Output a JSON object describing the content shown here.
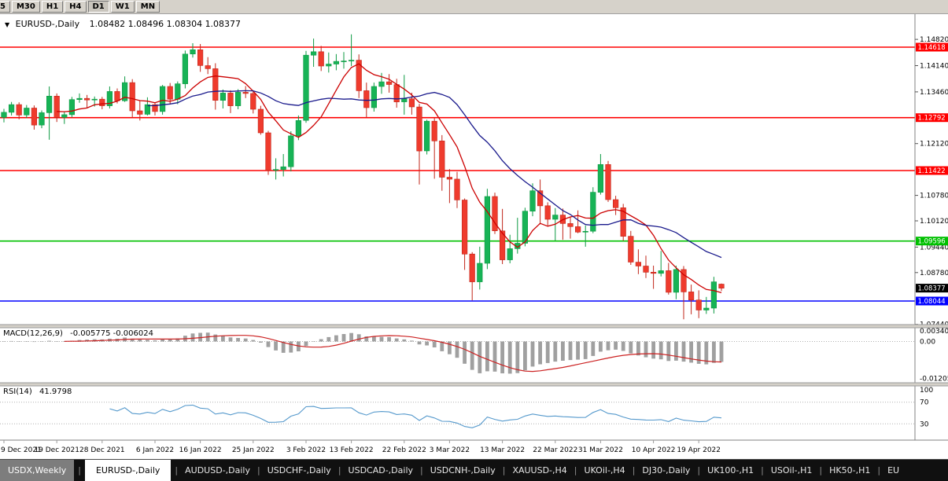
{
  "toolbar": {
    "buttons": [
      {
        "label": "5",
        "active": false,
        "partial": true
      },
      {
        "label": "M30",
        "active": false
      },
      {
        "label": "H1",
        "active": false
      },
      {
        "label": "H4",
        "active": false
      },
      {
        "label": "D1",
        "active": true
      },
      {
        "label": "W1",
        "active": false
      },
      {
        "label": "MN",
        "active": false
      }
    ]
  },
  "chart_data": {
    "type": "candlestick",
    "symbol_period": "EURUSD-,Daily",
    "ohlc_text": "1.08482 1.08496 1.08304 1.08377",
    "collapse_icon": "▼",
    "axis": {
      "price_top": 1.15473,
      "price_bottom": 1.07433,
      "ticks": [
        {
          "label": "1.14820",
          "p": 1.1482
        },
        {
          "label": "1.14140",
          "p": 1.1414
        },
        {
          "label": "1.13460",
          "p": 1.1346
        },
        {
          "label": "1.12120",
          "p": 1.1212
        },
        {
          "label": "1.10780",
          "p": 1.1078
        },
        {
          "label": "1.10120",
          "p": 1.1012
        },
        {
          "label": "1.09440",
          "p": 1.0944
        },
        {
          "label": "1.08780",
          "p": 1.0878
        },
        {
          "label": "1.07440",
          "p": 1.0744
        }
      ]
    },
    "hlines": [
      {
        "price": 1.14618,
        "label": "1.14618",
        "color": "#ff0000"
      },
      {
        "price": 1.12792,
        "label": "1.12792",
        "color": "#ff0000"
      },
      {
        "price": 1.11422,
        "label": "1.11422",
        "color": "#ff0000"
      },
      {
        "price": 1.09596,
        "label": "1.09596",
        "color": "#00c000"
      },
      {
        "price": 1.08044,
        "label": "1.08044",
        "color": "#0000ff"
      }
    ],
    "current_price": {
      "label": "1.08377",
      "price": 1.08377,
      "bg": "#000000"
    },
    "colors": {
      "up": "#0d9a43",
      "up_fill": "#17b356",
      "down": "#c1271b",
      "down_fill": "#ef3b2d"
    },
    "ma": [
      {
        "period": 8,
        "color": "#cc0000"
      },
      {
        "period": 20,
        "color": "#1a1a8c"
      }
    ],
    "candles": [
      [
        1.128,
        1.1302,
        1.1267,
        1.1293
      ],
      [
        1.1293,
        1.132,
        1.1285,
        1.1313
      ],
      [
        1.1313,
        1.1319,
        1.1275,
        1.1286
      ],
      [
        1.1286,
        1.1312,
        1.1278,
        1.1304
      ],
      [
        1.1304,
        1.1311,
        1.1248,
        1.126
      ],
      [
        1.126,
        1.1298,
        1.1252,
        1.1292
      ],
      [
        1.1292,
        1.136,
        1.1222,
        1.1335
      ],
      [
        1.1335,
        1.1342,
        1.1268,
        1.128
      ],
      [
        1.128,
        1.1295,
        1.1263,
        1.1287
      ],
      [
        1.1287,
        1.1333,
        1.128,
        1.1326
      ],
      [
        1.1326,
        1.1342,
        1.1318,
        1.1329
      ],
      [
        1.1329,
        1.1338,
        1.1304,
        1.1325
      ],
      [
        1.1325,
        1.1334,
        1.1308,
        1.1327
      ],
      [
        1.1327,
        1.1333,
        1.1301,
        1.131
      ],
      [
        1.131,
        1.136,
        1.1303,
        1.1347
      ],
      [
        1.1347,
        1.1355,
        1.1316,
        1.1323
      ],
      [
        1.1323,
        1.1386,
        1.132,
        1.137
      ],
      [
        1.137,
        1.1379,
        1.1279,
        1.1297
      ],
      [
        1.1297,
        1.1323,
        1.1272,
        1.1288
      ],
      [
        1.1288,
        1.1332,
        1.1285,
        1.1313
      ],
      [
        1.1313,
        1.1319,
        1.1285,
        1.1295
      ],
      [
        1.1295,
        1.1364,
        1.1287,
        1.136
      ],
      [
        1.136,
        1.1369,
        1.1313,
        1.1327
      ],
      [
        1.1327,
        1.1373,
        1.1314,
        1.1367
      ],
      [
        1.1367,
        1.1453,
        1.1355,
        1.1444
      ],
      [
        1.1444,
        1.1472,
        1.1435,
        1.1455
      ],
      [
        1.1455,
        1.147,
        1.1398,
        1.1414
      ],
      [
        1.1414,
        1.1436,
        1.1392,
        1.1406
      ],
      [
        1.1406,
        1.142,
        1.13,
        1.1324
      ],
      [
        1.1324,
        1.1352,
        1.1303,
        1.1343
      ],
      [
        1.1343,
        1.135,
        1.1291,
        1.131
      ],
      [
        1.131,
        1.1353,
        1.1301,
        1.1345
      ],
      [
        1.1345,
        1.1361,
        1.133,
        1.1342
      ],
      [
        1.1342,
        1.135,
        1.129,
        1.1301
      ],
      [
        1.1301,
        1.131,
        1.1235,
        1.124
      ],
      [
        1.124,
        1.1245,
        1.1131,
        1.1143
      ],
      [
        1.1143,
        1.1174,
        1.1119,
        1.1145
      ],
      [
        1.1145,
        1.1185,
        1.1127,
        1.1152
      ],
      [
        1.1152,
        1.1244,
        1.114,
        1.1232
      ],
      [
        1.1232,
        1.1285,
        1.1221,
        1.1272
      ],
      [
        1.1272,
        1.1452,
        1.1266,
        1.1441
      ],
      [
        1.1441,
        1.1484,
        1.1411,
        1.145
      ],
      [
        1.145,
        1.1465,
        1.14,
        1.1413
      ],
      [
        1.1413,
        1.1448,
        1.1396,
        1.1418
      ],
      [
        1.1418,
        1.1444,
        1.1402,
        1.1425
      ],
      [
        1.1425,
        1.1449,
        1.1406,
        1.1426
      ],
      [
        1.1426,
        1.1495,
        1.1413,
        1.1428
      ],
      [
        1.1428,
        1.1443,
        1.133,
        1.1349
      ],
      [
        1.1349,
        1.137,
        1.128,
        1.1305
      ],
      [
        1.1305,
        1.137,
        1.1295,
        1.136
      ],
      [
        1.136,
        1.1395,
        1.1341,
        1.1372
      ],
      [
        1.1372,
        1.1392,
        1.1344,
        1.1365
      ],
      [
        1.1365,
        1.138,
        1.1305,
        1.132
      ],
      [
        1.132,
        1.139,
        1.1287,
        1.1328
      ],
      [
        1.1328,
        1.1344,
        1.1287,
        1.1307
      ],
      [
        1.1307,
        1.1315,
        1.1106,
        1.1193
      ],
      [
        1.1193,
        1.1274,
        1.1184,
        1.127
      ],
      [
        1.127,
        1.1279,
        1.1121,
        1.1219
      ],
      [
        1.1219,
        1.1234,
        1.109,
        1.1125
      ],
      [
        1.1125,
        1.1146,
        1.1058,
        1.112
      ],
      [
        1.112,
        1.1139,
        1.1045,
        1.1066
      ],
      [
        1.1066,
        1.107,
        1.0885,
        1.0926
      ],
      [
        1.0926,
        1.0931,
        1.0806,
        1.0854
      ],
      [
        1.0854,
        1.0945,
        1.0834,
        1.0902
      ],
      [
        1.0902,
        1.1095,
        1.0887,
        1.1075
      ],
      [
        1.1075,
        1.1085,
        1.0978,
        1.0986
      ],
      [
        1.0986,
        1.1043,
        1.09,
        1.0911
      ],
      [
        1.0911,
        1.0976,
        1.0902,
        1.094
      ],
      [
        1.094,
        1.102,
        1.0927,
        1.0954
      ],
      [
        1.0954,
        1.1046,
        1.0946,
        1.1037
      ],
      [
        1.1037,
        1.1109,
        1.1024,
        1.109
      ],
      [
        1.109,
        1.1119,
        1.1003,
        1.1051
      ],
      [
        1.1051,
        1.106,
        1.1,
        1.1016
      ],
      [
        1.1016,
        1.1045,
        1.0961,
        1.1027
      ],
      [
        1.1027,
        1.1044,
        1.0963,
        1.1005
      ],
      [
        1.1005,
        1.1021,
        1.0966,
        1.0997
      ],
      [
        1.0997,
        1.1039,
        1.098,
        1.0983
      ],
      [
        1.0983,
        1.1,
        1.0945,
        1.0985
      ],
      [
        1.0985,
        1.1099,
        1.098,
        1.1086
      ],
      [
        1.1086,
        1.1185,
        1.108,
        1.1158
      ],
      [
        1.1158,
        1.1167,
        1.1061,
        1.1067
      ],
      [
        1.1067,
        1.1077,
        1.1027,
        1.1046
      ],
      [
        1.1046,
        1.1056,
        1.096,
        1.0972
      ],
      [
        1.0972,
        1.0986,
        1.0898,
        1.0905
      ],
      [
        1.0905,
        1.0938,
        1.0874,
        1.0895
      ],
      [
        1.0895,
        1.0922,
        1.0864,
        1.0879
      ],
      [
        1.0879,
        1.0896,
        1.0836,
        1.0876
      ],
      [
        1.0876,
        1.0934,
        1.0868,
        1.0883
      ],
      [
        1.0883,
        1.0903,
        1.0821,
        1.0827
      ],
      [
        1.0827,
        1.0896,
        1.0809,
        1.0886
      ],
      [
        1.0886,
        1.0895,
        1.0757,
        1.0828
      ],
      [
        1.0828,
        1.0847,
        1.077,
        1.0807
      ],
      [
        1.0807,
        1.0832,
        1.076,
        1.0781
      ],
      [
        1.0781,
        1.0815,
        1.0771,
        1.0786
      ],
      [
        1.0786,
        1.0867,
        1.0772,
        1.0854
      ],
      [
        1.08482,
        1.08496,
        1.08304,
        1.08377
      ]
    ],
    "date_labels": [
      {
        "i": 0,
        "label": "9 Dec 2021"
      },
      {
        "i": 7,
        "label": "19 Dec 2021"
      },
      {
        "i": 13,
        "label": "28 Dec 2021"
      },
      {
        "i": 20,
        "label": "6 Jan 2022"
      },
      {
        "i": 26,
        "label": "16 Jan 2022"
      },
      {
        "i": 33,
        "label": "25 Jan 2022"
      },
      {
        "i": 40,
        "label": "3 Feb 2022"
      },
      {
        "i": 46,
        "label": "13 Feb 2022"
      },
      {
        "i": 53,
        "label": "22 Feb 2022"
      },
      {
        "i": 59,
        "label": "3 Mar 2022"
      },
      {
        "i": 66,
        "label": "13 Mar 2022"
      },
      {
        "i": 73,
        "label": "22 Mar 2022"
      },
      {
        "i": 79,
        "label": "31 Mar 2022"
      },
      {
        "i": 86,
        "label": "10 Apr 2022"
      },
      {
        "i": 92,
        "label": "19 Apr 2022"
      }
    ],
    "indicators": {
      "macd": {
        "label": "MACD(12,26,9)",
        "values_text": "-0.005775 -0.006024",
        "fast": 12,
        "slow": 26,
        "signal": 9,
        "range": [
          0.0045,
          -0.0135
        ],
        "axis": [
          {
            "label": "0.003408",
            "v": 0.003408
          },
          {
            "label": "0.00",
            "v": 0
          },
          {
            "label": "-0.012050",
            "v": -0.01205
          }
        ],
        "hist_color": "#a0a0a0",
        "signal_color": "#cc2222"
      },
      "rsi": {
        "label": "RSI(14)",
        "value_text": "41.9798",
        "period": 14,
        "levels": [
          70,
          30
        ],
        "axis": [
          {
            "label": "100",
            "v": 100
          },
          {
            "label": "70",
            "v": 70
          },
          {
            "label": "30",
            "v": 30
          }
        ],
        "color": "#5599cc"
      }
    }
  },
  "tabs": [
    {
      "label": "USDX,Weekly",
      "state": "muted"
    },
    {
      "label": "EURUSD-,Daily",
      "state": "active"
    },
    {
      "label": "AUDUSD-,Daily",
      "state": "normal"
    },
    {
      "label": "USDCHF-,Daily",
      "state": "normal"
    },
    {
      "label": "USDCAD-,Daily",
      "state": "normal"
    },
    {
      "label": "USDCNH-,Daily",
      "state": "normal"
    },
    {
      "label": "XAUUSD-,H4",
      "state": "normal"
    },
    {
      "label": "UKOil-,H4",
      "state": "normal"
    },
    {
      "label": "DJ30-,Daily",
      "state": "normal"
    },
    {
      "label": "UK100-,H1",
      "state": "normal"
    },
    {
      "label": "USOil-,H1",
      "state": "normal"
    },
    {
      "label": "HK50-,H1",
      "state": "normal"
    },
    {
      "label": "EU",
      "state": "normal"
    }
  ]
}
